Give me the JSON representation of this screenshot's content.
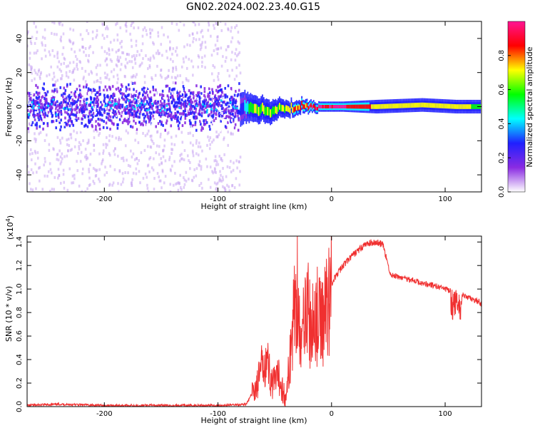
{
  "page": {
    "title": "GN02.2024.002.23.40.G15"
  },
  "colors": {
    "accent": "#f03030"
  },
  "chart_data": [
    {
      "type": "heatmap",
      "title": "",
      "xlabel": "Height of straight line (km)",
      "ylabel": "Frequency (Hz)",
      "xlim": [
        -268,
        132
      ],
      "ylim": [
        -50,
        50
      ],
      "x_ticks": [
        -200,
        -100,
        0,
        100
      ],
      "x_tick_labels": [
        "-200",
        "-100",
        "0",
        "100"
      ],
      "y_ticks": [
        -40,
        -20,
        0,
        20,
        40
      ],
      "y_tick_labels": [
        "-40",
        "-20",
        "0",
        "20",
        "40"
      ],
      "scatter_region_x": [
        -268,
        -80
      ],
      "colorbar": {
        "label": "Normalized spectral amplitude",
        "range": [
          0,
          1
        ],
        "ticks": [
          0,
          0.2,
          0.4,
          0.6,
          0.8
        ],
        "tick_labels": [
          "0.0",
          "0.2",
          "0.4",
          "0.6",
          "0.8"
        ],
        "colors": [
          "#ffffff",
          "#8a2be2",
          "#2020ff",
          "#00ffff",
          "#00ff00",
          "#ffff00",
          "#ff0000",
          "#ff1493"
        ]
      },
      "ridge": [
        {
          "x": -80,
          "y": 0,
          "width": 10,
          "amp": 0.3
        },
        {
          "x": -70,
          "y": -1,
          "width": 8,
          "amp": 0.55
        },
        {
          "x": -55,
          "y": -3,
          "width": 7,
          "amp": 0.6
        },
        {
          "x": -40,
          "y": -1,
          "width": 5,
          "amp": 0.7
        },
        {
          "x": -25,
          "y": 0,
          "width": 4,
          "amp": 0.85
        },
        {
          "x": -10,
          "y": 0,
          "width": 3,
          "amp": 0.9
        },
        {
          "x": 10,
          "y": 0,
          "width": 3,
          "amp": 0.95
        },
        {
          "x": 40,
          "y": 0,
          "width": 4,
          "amp": 0.75
        },
        {
          "x": 80,
          "y": 1,
          "width": 4,
          "amp": 0.65
        },
        {
          "x": 110,
          "y": 0,
          "width": 4,
          "amp": 0.7
        },
        {
          "x": 132,
          "y": 0,
          "width": 4,
          "amp": 0.6
        }
      ]
    },
    {
      "type": "line",
      "title": "",
      "xlabel": "Height of straight line (km)",
      "ylabel": "SNR (10 * v/v)",
      "y_multiplier_label": "(x10",
      "y_multiplier_exp": "4",
      "y_multiplier_close": ")",
      "xlim": [
        -268,
        132
      ],
      "ylim": [
        0,
        1.45
      ],
      "x_ticks": [
        -200,
        -100,
        0,
        100
      ],
      "x_tick_labels": [
        "-200",
        "-100",
        "0",
        "100"
      ],
      "y_ticks": [
        0,
        0.2,
        0.4,
        0.6,
        0.8,
        1.0,
        1.2,
        1.4
      ],
      "y_tick_labels": [
        "0.0",
        "0.2",
        "0.4",
        "0.6",
        "0.8",
        "1.0",
        "1.2",
        "1.4"
      ],
      "series": [
        {
          "color": "#f03030",
          "x": [
            -268,
            -240,
            -200,
            -150,
            -100,
            -75,
            -65,
            -58,
            -52,
            -46,
            -40,
            -35,
            -30,
            -27,
            -23,
            -18,
            -14,
            -10,
            -6,
            0,
            10,
            20,
            30,
            38,
            45,
            52,
            60,
            70,
            80,
            90,
            100,
            105,
            110,
            115,
            120,
            132
          ],
          "y": [
            0.01,
            0.02,
            0.01,
            0.01,
            0.01,
            0.02,
            0.2,
            0.45,
            0.18,
            0.25,
            0.05,
            0.6,
            1.1,
            0.4,
            1.0,
            0.6,
            0.8,
            0.7,
            0.8,
            1.05,
            1.2,
            1.3,
            1.38,
            1.4,
            1.38,
            1.12,
            1.1,
            1.08,
            1.05,
            1.03,
            1.0,
            0.98,
            1.02,
            0.95,
            0.93,
            0.88
          ]
        }
      ]
    }
  ]
}
